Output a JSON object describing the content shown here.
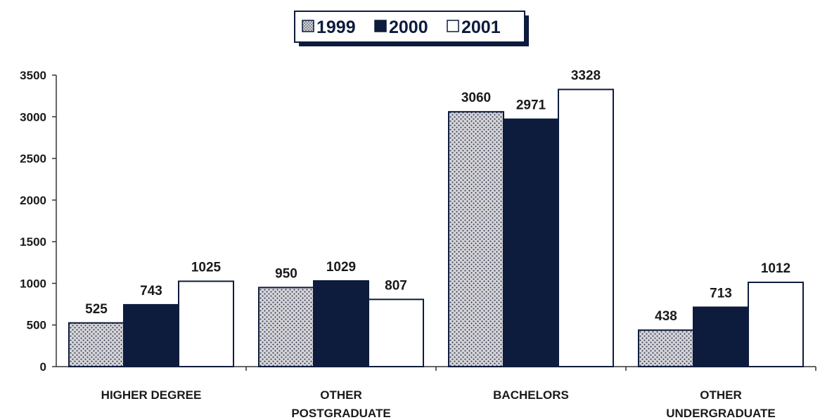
{
  "chart_data": {
    "type": "bar",
    "categories": [
      [
        "HIGHER DEGREE"
      ],
      [
        "OTHER",
        "POSTGRADUATE"
      ],
      [
        "BACHELORS"
      ],
      [
        "OTHER",
        "UNDERGRADUATE"
      ]
    ],
    "series": [
      {
        "name": "1999",
        "values": [
          525,
          950,
          3060,
          438
        ],
        "fill": "dotted-grey"
      },
      {
        "name": "2000",
        "values": [
          743,
          1029,
          2971,
          713
        ],
        "fill": "#0d1b3d"
      },
      {
        "name": "2001",
        "values": [
          1025,
          807,
          3328,
          1012
        ],
        "fill": "#ffffff"
      }
    ],
    "yticks": [
      "0",
      "500",
      "1000",
      "1500",
      "2000",
      "2500",
      "3000",
      "3500"
    ],
    "ylim": [
      0,
      3500
    ],
    "legend_position": "top-center",
    "grid": false,
    "colors": {
      "navy": "#0d1b3d",
      "dot_bg": "#d4d4d8",
      "dot": "#2a2f45"
    }
  }
}
